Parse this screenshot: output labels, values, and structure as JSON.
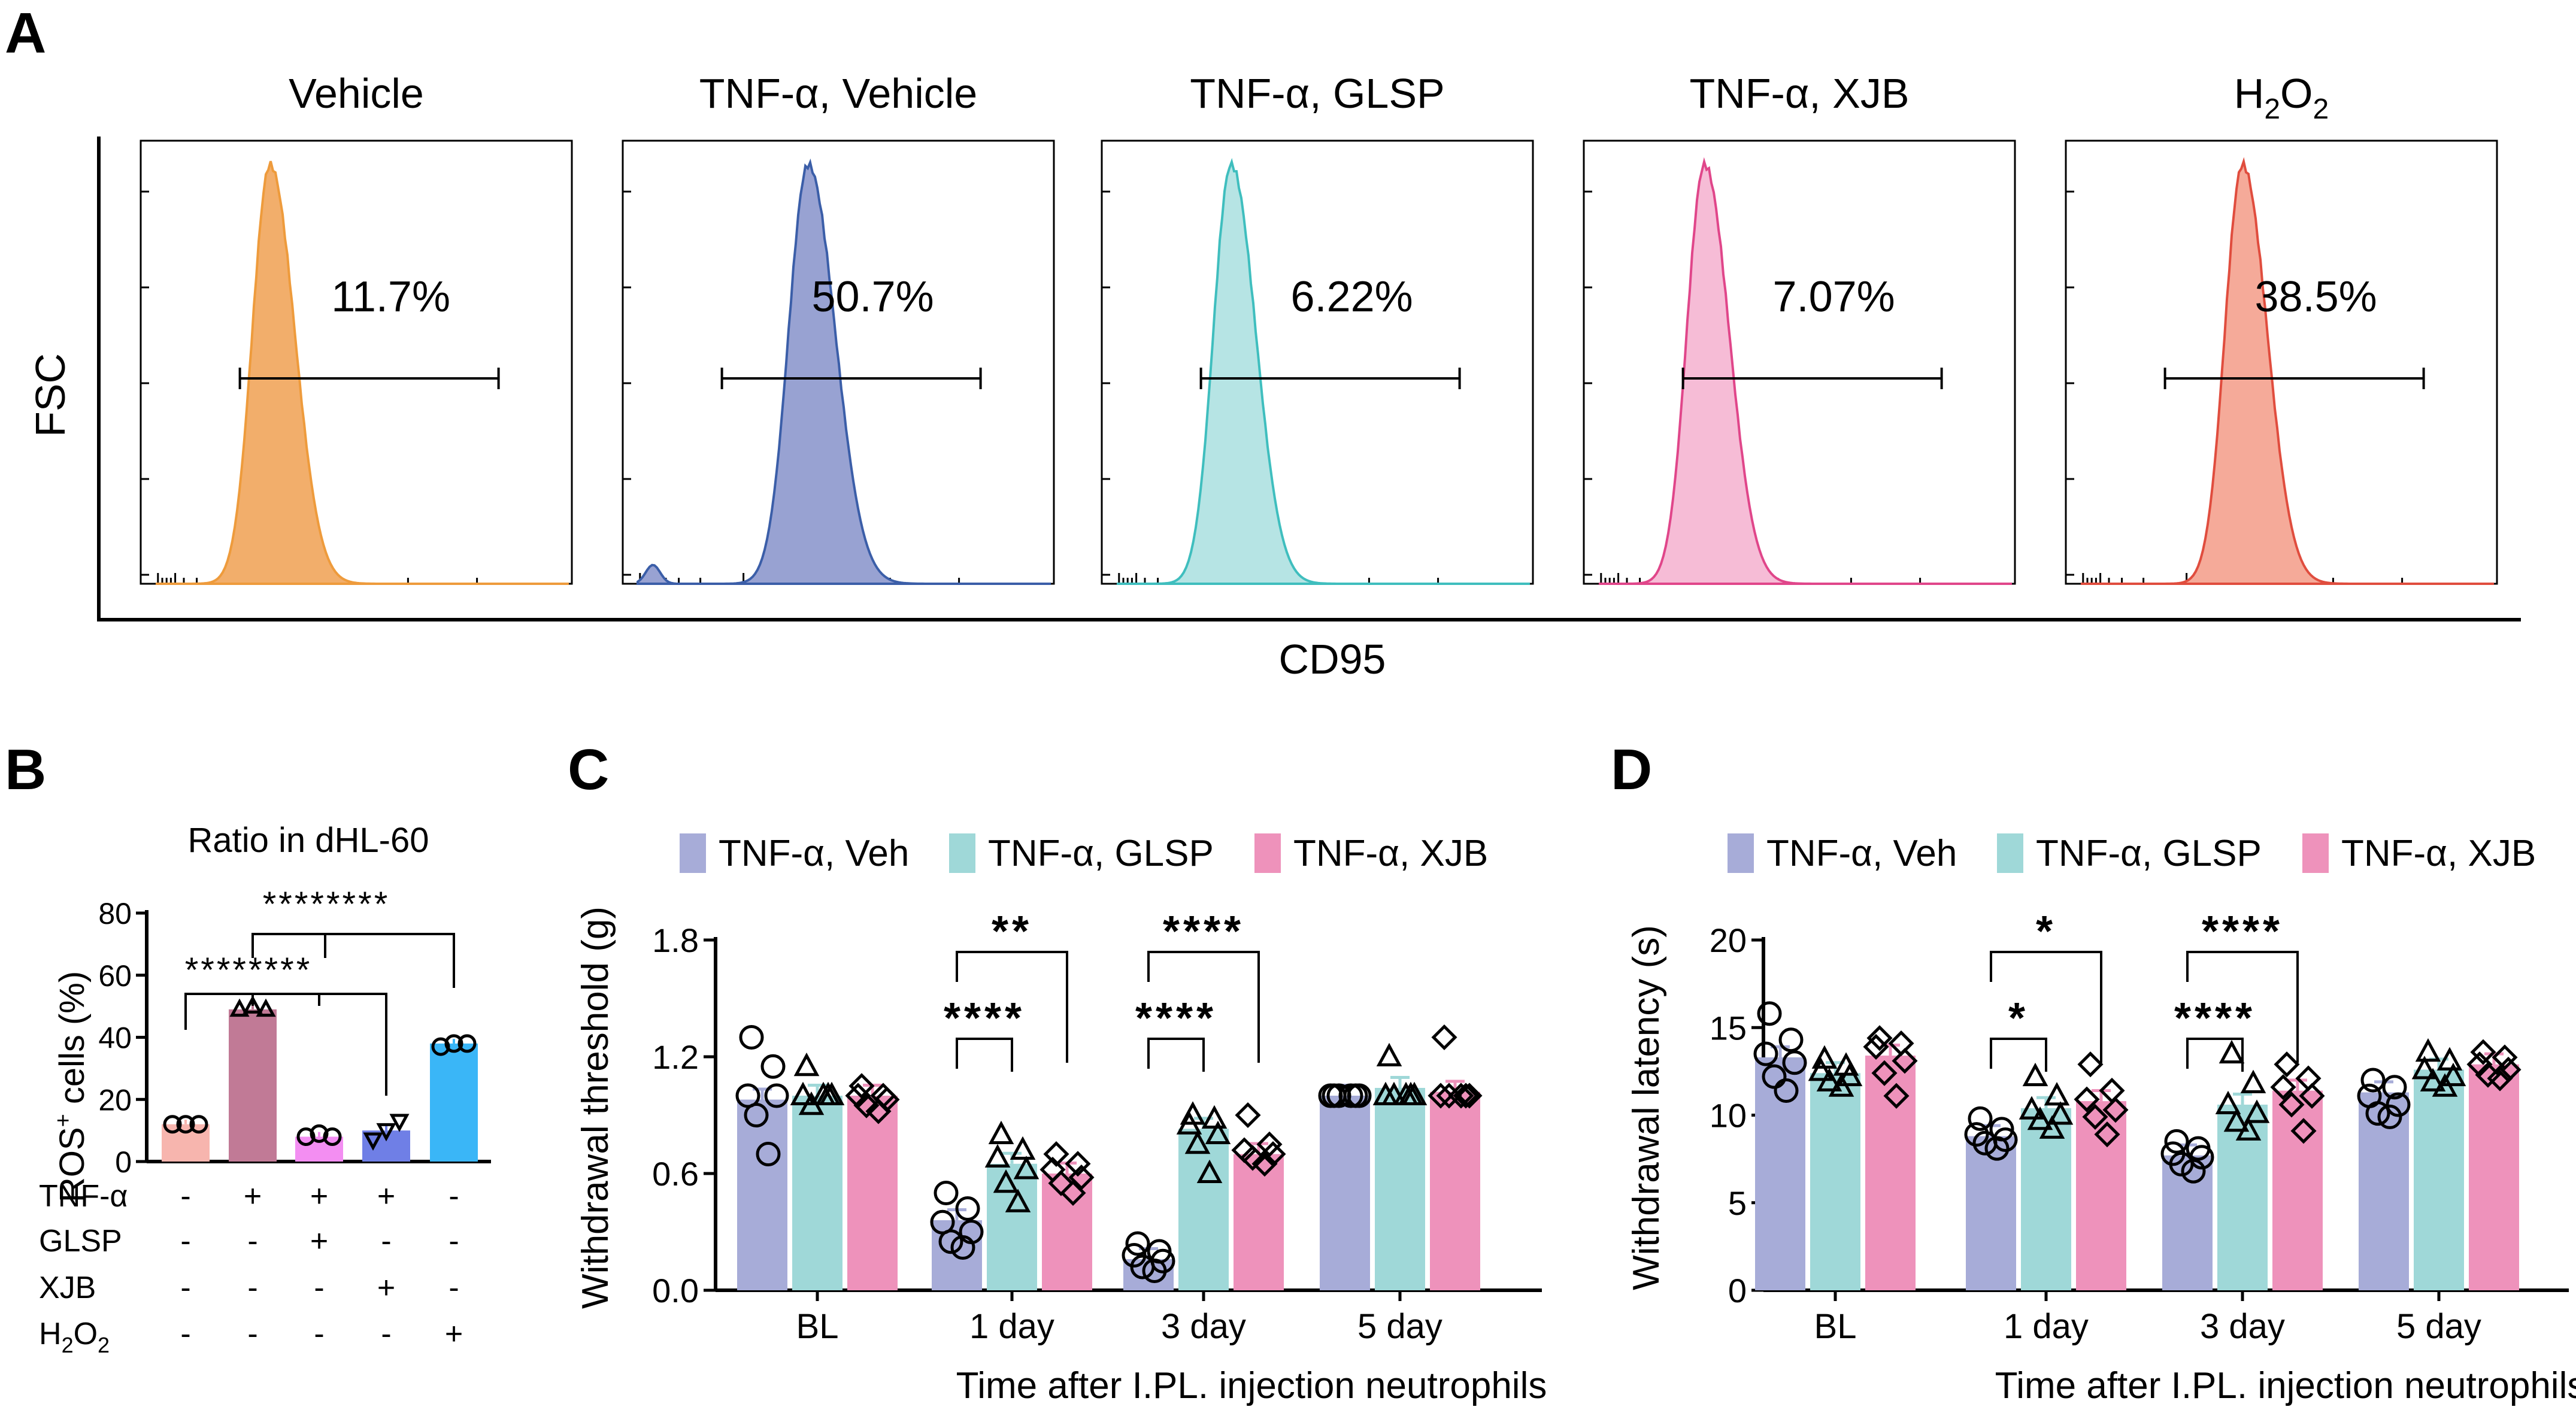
{
  "panel_letters": {
    "a": "A",
    "b": "B",
    "c": "C",
    "d": "D"
  },
  "colors": {
    "veh": "#a7acd8",
    "glsp": "#9fd8d8",
    "xjb": "#ee92bb",
    "b_bars": [
      "#f7b5ae",
      "#c17a96",
      "#f38ef2",
      "#6f7fe6",
      "#3ab6f7"
    ]
  },
  "chart_data": [
    {
      "id": "A",
      "type": "histogram",
      "xlabel": "CD95",
      "ylabel": "FSC",
      "panels": [
        {
          "title": "Vehicle",
          "percent": "11.7%",
          "color": "#f2ae6b",
          "stroke": "#ee9b3c",
          "peak_pos": 0.3,
          "width": 0.1
        },
        {
          "title": "TNF-α, Vehicle",
          "percent": "50.7%",
          "color": "#98a2d2",
          "stroke": "#3b5ea8",
          "peak_pos": 0.43,
          "width": 0.11
        },
        {
          "title": "TNF-α, GLSP",
          "percent": "6.22%",
          "color": "#b6e4e4",
          "stroke": "#3fbebe",
          "peak_pos": 0.3,
          "width": 0.1
        },
        {
          "title": "TNF-α, XJB",
          "percent": "7.07%",
          "color": "#f6bcd6",
          "stroke": "#e0468a",
          "peak_pos": 0.28,
          "width": 0.1
        },
        {
          "title_main": "H",
          "title_sub": "2",
          "title_mid": "O",
          "title_sub2": "2",
          "percent": "38.5%",
          "color": "#f5aa99",
          "stroke": "#e04d3e",
          "peak_pos": 0.41,
          "width": 0.1
        }
      ]
    },
    {
      "id": "B",
      "type": "bar",
      "title": "Ratio in dHL-60",
      "ylabel_main": "ROS",
      "ylabel_sup": "+",
      "ylabel_rest": " cells (%)",
      "ylim": [
        0,
        80
      ],
      "yticks": [
        "0",
        "20",
        "40",
        "60",
        "80"
      ],
      "values": [
        12,
        49,
        8,
        10,
        38
      ],
      "points": [
        [
          12,
          12,
          12
        ],
        [
          49,
          50,
          49
        ],
        [
          8,
          9,
          8
        ],
        [
          7,
          10,
          13
        ],
        [
          37,
          38,
          38
        ]
      ],
      "sig": [
        "********",
        "********"
      ],
      "table": {
        "rows": [
          {
            "label": "TNF-α",
            "marks": [
              "-",
              "+",
              "+",
              "+",
              "-"
            ]
          },
          {
            "label": "GLSP",
            "marks": [
              "-",
              "-",
              "+",
              "-",
              "-"
            ]
          },
          {
            "label": "XJB",
            "marks": [
              "-",
              "-",
              "-",
              "+",
              "-"
            ]
          },
          {
            "label_main": "H",
            "label_sub": "2",
            "label_mid": "O",
            "label_sub2": "2",
            "marks": [
              "-",
              "-",
              "-",
              "-",
              "+"
            ]
          }
        ]
      }
    },
    {
      "id": "C",
      "type": "bar",
      "ylabel": "Withdrawal threshold (g)",
      "xlabel": "Time after I.PL. injection neutrophils",
      "ylim": [
        0,
        1.8
      ],
      "yticks": [
        "0.0",
        "0.6",
        "1.2",
        "1.8"
      ],
      "categories": [
        "BL",
        "1 day",
        "3 day",
        "5 day"
      ],
      "legend": [
        "TNF-α, Veh",
        "TNF-α, GLSP",
        "TNF-α, XJB"
      ],
      "series": [
        {
          "name": "TNF-α, Veh",
          "values": [
            0.98,
            0.36,
            0.16,
            1.0
          ],
          "points": [
            [
              1.3,
              1.15,
              1.0,
              1.0,
              0.9,
              0.7
            ],
            [
              0.5,
              0.42,
              0.35,
              0.3,
              0.25,
              0.22
            ],
            [
              0.24,
              0.2,
              0.18,
              0.15,
              0.12,
              0.1
            ]
          ]
        },
        {
          "name": "TNF-α, GLSP",
          "values": [
            1.0,
            0.65,
            0.83,
            1.04
          ],
          "points": [
            [
              1.15,
              1.0,
              1.0,
              1.0,
              0.95,
              1.0
            ],
            [
              0.8,
              0.72,
              0.68,
              0.62,
              0.55,
              0.45
            ],
            [
              0.9,
              0.88,
              0.85,
              0.8,
              0.75,
              0.6
            ]
          ]
        },
        {
          "name": "TNF-α, XJB",
          "values": [
            1.0,
            0.6,
            0.7,
            1.02
          ],
          "points": [
            [
              1.05,
              1.0,
              1.0,
              0.98,
              0.95,
              0.92
            ],
            [
              0.7,
              0.65,
              0.62,
              0.58,
              0.55,
              0.5
            ],
            [
              0.9,
              0.75,
              0.72,
              0.7,
              0.68,
              0.65
            ]
          ]
        }
      ],
      "five_day_points": [
        [
          1.0,
          1.0,
          1.0,
          1.0,
          1.0,
          1.0
        ],
        [
          1.2,
          1.0,
          1.0,
          1.0,
          1.0,
          1.0
        ],
        [
          1.3,
          1.0,
          1.0,
          1.0,
          1.0,
          1.0
        ]
      ],
      "sig": [
        {
          "label": "****",
          "group": 1,
          "to": 1
        },
        {
          "label": "**",
          "group": 1,
          "to": 2
        },
        {
          "label": "****",
          "group": 2,
          "to": 1
        },
        {
          "label": "****",
          "group": 2,
          "to": 2
        }
      ]
    },
    {
      "id": "D",
      "type": "bar",
      "ylabel": "Withdrawal latency (s)",
      "xlabel": "Time after I.PL. injection neutrophils",
      "ylim": [
        0,
        20
      ],
      "yticks": [
        "0",
        "5",
        "10",
        "15",
        "20"
      ],
      "categories": [
        "BL",
        "1 day",
        "3 day",
        "5 day"
      ],
      "legend": [
        "TNF-α, Veh",
        "TNF-α, GLSP",
        "TNF-α, XJB"
      ],
      "series": [
        {
          "name": "TNF-α, Veh",
          "values": [
            13.3,
            8.8,
            7.7,
            11.3
          ],
          "points": [
            [
              15.8,
              14.3,
              13.5,
              13.0,
              12.2,
              11.4
            ],
            [
              9.8,
              9.2,
              8.9,
              8.6,
              8.4,
              8.1
            ],
            [
              8.5,
              8.1,
              7.8,
              7.6,
              7.2,
              6.8
            ]
          ]
        },
        {
          "name": "TNF-α, GLSP",
          "values": [
            12.4,
            10.4,
            10.6,
            12.6
          ],
          "points": [
            [
              13.2,
              12.8,
              12.5,
              12.2,
              11.9,
              11.6
            ],
            [
              12.2,
              11.1,
              10.3,
              10.0,
              9.7,
              9.2
            ],
            [
              13.5,
              11.8,
              10.6,
              10.1,
              9.6,
              9.1
            ]
          ]
        },
        {
          "name": "TNF-α, XJB",
          "values": [
            13.4,
            10.8,
            11.4,
            12.9
          ],
          "points": [
            [
              14.4,
              14.1,
              13.9,
              13.1,
              12.4,
              11.1
            ],
            [
              12.9,
              11.4,
              10.9,
              10.3,
              9.9,
              8.9
            ],
            [
              12.9,
              12.1,
              11.6,
              11.1,
              10.6,
              9.1
            ]
          ]
        }
      ],
      "five_day_points": [
        [
          12.0,
          11.6,
          11.1,
          10.6,
          10.1,
          9.9
        ],
        [
          13.6,
          13.1,
          12.6,
          12.2,
          11.9,
          11.6
        ],
        [
          13.6,
          13.3,
          12.9,
          12.6,
          12.3,
          12.1
        ]
      ],
      "sig": [
        {
          "label": "*",
          "group": 1,
          "to": 1
        },
        {
          "label": "*",
          "group": 1,
          "to": 2
        },
        {
          "label": "****",
          "group": 2,
          "to": 1
        },
        {
          "label": "****",
          "group": 2,
          "to": 2
        }
      ]
    }
  ]
}
